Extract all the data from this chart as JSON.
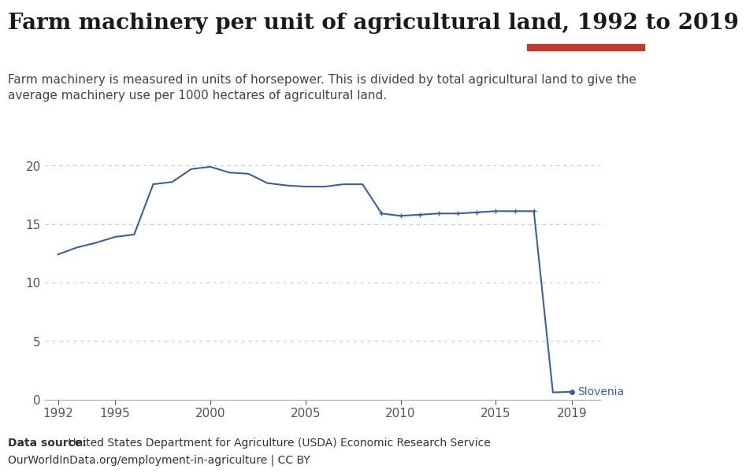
{
  "title": "Farm machinery per unit of agricultural land, 1992 to 2019",
  "subtitle": "Farm machinery is measured in units of horsepower. This is divided by total agricultural land to give the\naverage machinery use per 1000 hectares of agricultural land.",
  "datasource_bold": "Data source:",
  "datasource_rest": " United States Department for Agriculture (USDA) Economic Research Service",
  "datasource_line2": "OurWorldInData.org/employment-in-agriculture | CC BY",
  "label": "Slovenia",
  "line_color": "#3a5fa0",
  "label_color": "#3a5fa0",
  "background_color": "#ffffff",
  "years": [
    1992,
    1993,
    1994,
    1995,
    1996,
    1997,
    1998,
    1999,
    2000,
    2001,
    2002,
    2003,
    2004,
    2005,
    2006,
    2007,
    2008,
    2009,
    2010,
    2011,
    2012,
    2013,
    2014,
    2015,
    2016,
    2017,
    2018,
    2019
  ],
  "values": [
    12.4,
    13.0,
    13.4,
    13.9,
    14.1,
    18.4,
    18.6,
    19.7,
    19.9,
    19.4,
    19.3,
    18.5,
    18.3,
    18.2,
    18.2,
    18.4,
    18.4,
    15.9,
    15.7,
    15.8,
    15.9,
    15.9,
    16.0,
    16.1,
    16.1,
    16.1,
    0.6,
    0.65
  ],
  "ylim": [
    0,
    21
  ],
  "yticks": [
    0,
    5,
    10,
    15,
    20
  ],
  "xticks": [
    1992,
    1995,
    2000,
    2005,
    2010,
    2015,
    2019
  ],
  "grid_color": "#cccccc",
  "owid_box_color": "#1a3a5c",
  "owid_box_red": "#c0392b",
  "title_fontsize": 20,
  "subtitle_fontsize": 11,
  "tick_fontsize": 11,
  "source_fontsize": 10
}
